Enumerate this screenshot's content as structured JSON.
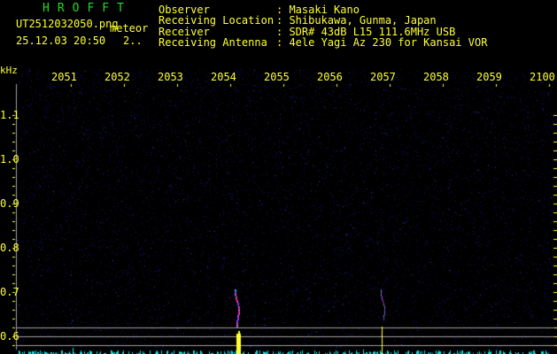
{
  "app_title": "HROFFT",
  "file_name": "UT2512032050.png",
  "mode": "meteor",
  "datetime": "25.12.03 20:50",
  "extra": "2..",
  "info": [
    {
      "label": "Observer",
      "value": ": Masaki Kano"
    },
    {
      "label": "Receiving Location",
      "value": ": Shibukawa, Gunma, Japan"
    },
    {
      "label": "Receiver",
      "value": ": SDR# 43dB L15 111.6MHz USB"
    },
    {
      "label": "Receiving Antenna",
      "value": ": 4ele Yagi Az 230 for Kansai VOR"
    }
  ],
  "x_unit": "kHz",
  "x_labels": [
    "2051",
    "2052",
    "2053",
    "2054",
    "2055",
    "2056",
    "2057",
    "2058",
    "2059",
    "2100"
  ],
  "y_labels": [
    "1.1",
    "1.0",
    "0.9",
    "0.8",
    "0.7",
    "0.6"
  ],
  "colors": {
    "text": "#ffff33",
    "title": "#22dd22",
    "noise": "#1a1a80",
    "spectrum": "#00e5e5",
    "grid": "#a0a0a0"
  }
}
